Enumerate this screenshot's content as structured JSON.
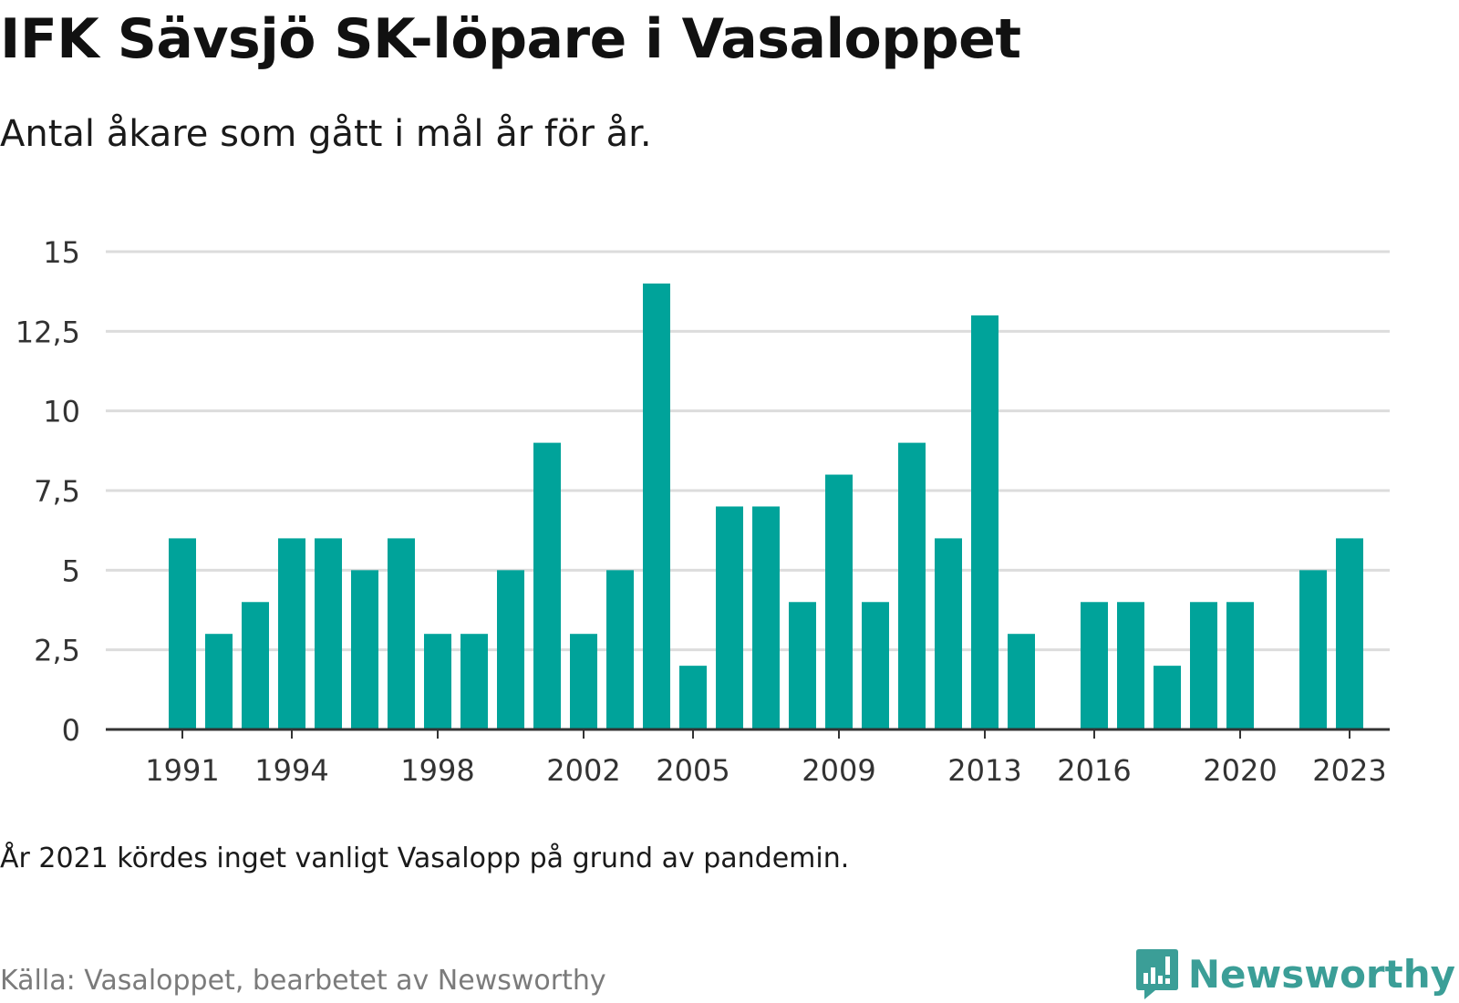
{
  "title": "IFK Sävsjö SK-löpare i Vasaloppet",
  "subtitle": "Antal åkare som gått i mål år för år.",
  "note": "År 2021 kördes inget vanligt Vasalopp på grund av pandemin.",
  "source": "Källa: Vasaloppet, bearbetet av Newsworthy",
  "brand": {
    "name": "Newsworthy",
    "color": "#3b9e97",
    "icon": "newsworthy-chart-bubble-icon"
  },
  "colors": {
    "bar": "#00a39a",
    "grid": "#dcdcdc",
    "axis": "#333333",
    "tick_text": "#333333"
  },
  "chart_data": {
    "type": "bar",
    "x": [
      1991,
      1992,
      1993,
      1994,
      1995,
      1996,
      1997,
      1998,
      1999,
      2000,
      2001,
      2002,
      2003,
      2004,
      2005,
      2006,
      2007,
      2008,
      2009,
      2010,
      2011,
      2012,
      2013,
      2014,
      2015,
      2016,
      2017,
      2018,
      2019,
      2020,
      2021,
      2022,
      2023
    ],
    "values": [
      6,
      3,
      4,
      6,
      6,
      5,
      6,
      3,
      3,
      5,
      9,
      3,
      5,
      14,
      2,
      7,
      7,
      4,
      8,
      4,
      9,
      6,
      13,
      3,
      null,
      4,
      4,
      2,
      4,
      4,
      null,
      5,
      6
    ],
    "x_tick_labels": [
      "1991",
      "1994",
      "1998",
      "2002",
      "2005",
      "2009",
      "2013",
      "2016",
      "2020",
      "2023"
    ],
    "y_ticks": [
      0,
      2.5,
      5,
      7.5,
      10,
      12.5,
      15
    ],
    "y_tick_labels": [
      "0",
      "2,5",
      "5",
      "7,5",
      "10",
      "12,5",
      "15"
    ],
    "ylim": [
      0,
      15
    ],
    "grid": true,
    "legend": "none",
    "xlabel": "",
    "ylabel": ""
  }
}
